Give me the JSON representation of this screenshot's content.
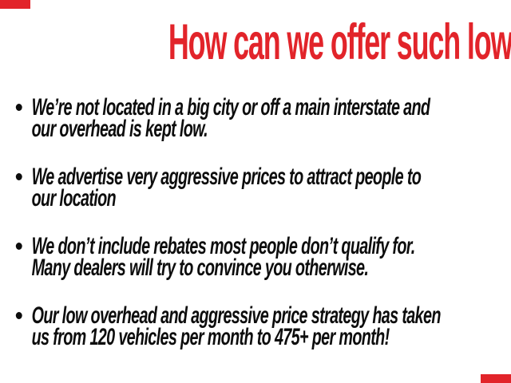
{
  "colors": {
    "accent_red": "#E2242A",
    "text_black": "#0d0d0d",
    "background": "#ffffff"
  },
  "heading": {
    "text": "How can we offer such low prices?"
  },
  "bullets": [
    {
      "lines": [
        "We’re not located in a big city or off a main interstate and",
        "our overhead is kept low."
      ]
    },
    {
      "lines": [
        "We advertise very aggressive prices to attract people to",
        "our location"
      ]
    },
    {
      "lines": [
        "We don’t include rebates most people don’t qualify for.",
        "Many dealers will try to convince you otherwise."
      ]
    },
    {
      "lines": [
        "Our low overhead and aggressive price strategy has taken",
        "us from 120 vehicles per month to 475+ per month!"
      ]
    }
  ],
  "decorations": {
    "corner_bars": "red accent bars, top-left and bottom-right"
  }
}
